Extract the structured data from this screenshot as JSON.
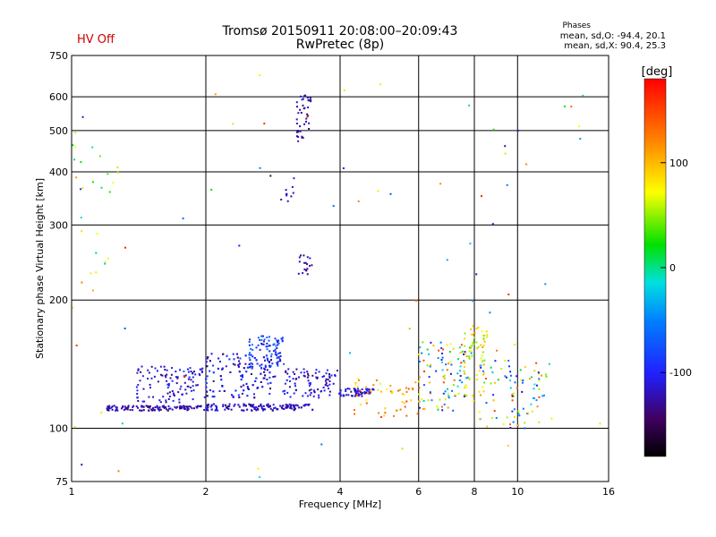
{
  "header": {
    "title": "Tromsø 20150911 20:08:00–20:09:43",
    "subtitle": "RwPretec (8p)",
    "status": "HV Off",
    "stats_title": "Phases",
    "stats_o": "mean, sd,O: -94.4, 20.1",
    "stats_x": "mean, sd,X:  90.4, 25.3"
  },
  "chart_data": {
    "type": "scatter",
    "title": "Tromsø 20150911 20:08:00–20:09:43",
    "subtitle": "RwPretec (8p)",
    "xlabel": "Frequency [MHz]",
    "ylabel": "Stationary phase Virtual Height [km]",
    "x_scale": "log",
    "y_scale": "log",
    "xlim": [
      1,
      16
    ],
    "ylim": [
      75,
      750
    ],
    "x_ticks": [
      1,
      2,
      4,
      6,
      8,
      10,
      16
    ],
    "y_ticks": [
      75,
      100,
      200,
      300,
      400,
      500,
      600,
      750
    ],
    "grid": true,
    "colorbar": {
      "label": "[deg]",
      "range": [
        -180,
        180
      ],
      "ticks": [
        100,
        0,
        -100
      ],
      "colormap": "rainbow"
    },
    "clusters": [
      {
        "x": [
          1.2,
          2.0
        ],
        "y": [
          110,
          113
        ],
        "n": 130,
        "phase": [
          -140,
          -110
        ]
      },
      {
        "x": [
          2.0,
          3.5
        ],
        "y": [
          110,
          114
        ],
        "n": 200,
        "phase": [
          -140,
          -100
        ]
      },
      {
        "x": [
          1.4,
          2.0
        ],
        "y": [
          115,
          140
        ],
        "n": 110,
        "phase": [
          -140,
          -90
        ]
      },
      {
        "x": [
          2.0,
          3.0
        ],
        "y": [
          118,
          150
        ],
        "n": 220,
        "phase": [
          -140,
          -80
        ]
      },
      {
        "x": [
          2.5,
          3.0
        ],
        "y": [
          138,
          165
        ],
        "n": 80,
        "phase": [
          -120,
          -50
        ]
      },
      {
        "x": [
          3.0,
          4.0
        ],
        "y": [
          118,
          138
        ],
        "n": 90,
        "phase": [
          -140,
          -90
        ]
      },
      {
        "x": [
          4.0,
          4.8
        ],
        "y": [
          119,
          124
        ],
        "n": 60,
        "phase": [
          -140,
          -90
        ]
      },
      {
        "x": [
          4.3,
          6.0
        ],
        "y": [
          105,
          130
        ],
        "n": 50,
        "phase": [
          60,
          160
        ]
      },
      {
        "x": [
          6.0,
          8.0
        ],
        "y": [
          110,
          160
        ],
        "n": 110,
        "phase": [
          -140,
          160
        ]
      },
      {
        "x": [
          7.6,
          8.6
        ],
        "y": [
          118,
          175
        ],
        "n": 60,
        "phase": [
          40,
          110
        ]
      },
      {
        "x": [
          8.2,
          12.0
        ],
        "y": [
          100,
          145
        ],
        "n": 90,
        "phase": [
          -140,
          160
        ]
      },
      {
        "x": [
          3.2,
          3.45
        ],
        "y": [
          480,
          610
        ],
        "n": 40,
        "phase": [
          -140,
          -110
        ]
      },
      {
        "x": [
          3.2,
          3.5
        ],
        "y": [
          230,
          255
        ],
        "n": 18,
        "phase": [
          -140,
          -110
        ]
      },
      {
        "x": [
          2.9,
          3.2
        ],
        "y": [
          340,
          370
        ],
        "n": 10,
        "phase": [
          -140,
          -110
        ]
      },
      {
        "x": [
          1.0,
          1.3
        ],
        "y": [
          200,
          500
        ],
        "n": 25,
        "phase": [
          -40,
          120
        ]
      },
      {
        "x": [
          1.0,
          16.0
        ],
        "y": [
          75,
          700
        ],
        "n": 70,
        "phase": [
          -150,
          170
        ]
      }
    ]
  }
}
